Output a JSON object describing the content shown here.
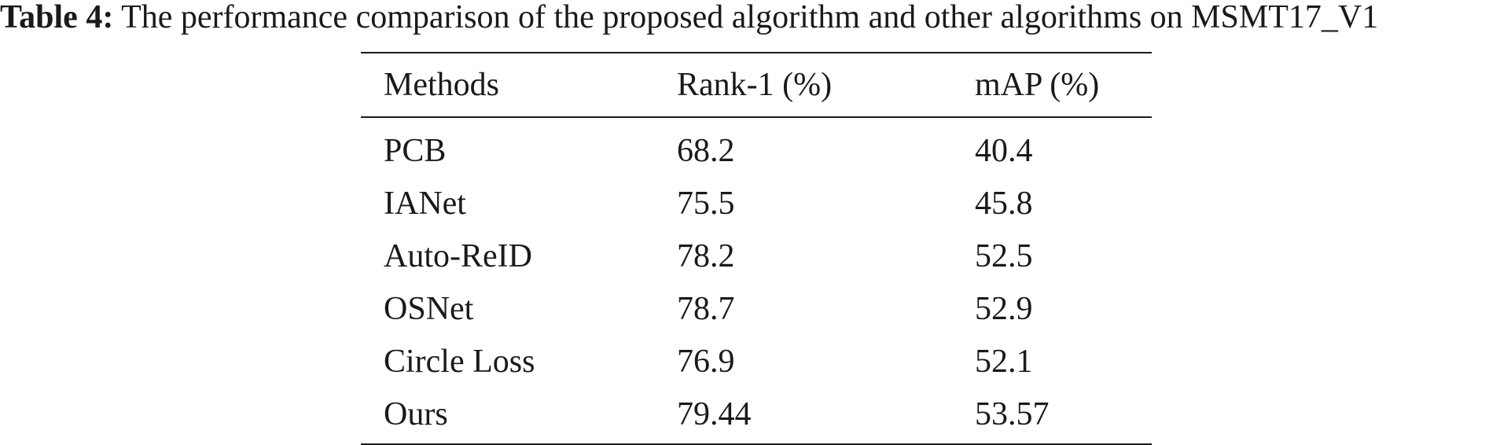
{
  "caption": {
    "label": "Table 4:",
    "text": "The performance comparison of the proposed algorithm and other algorithms on MSMT17_V1"
  },
  "table": {
    "headers": [
      "Methods",
      "Rank-1 (%)",
      "mAP (%)"
    ],
    "rows": [
      [
        "PCB",
        "68.2",
        "40.4"
      ],
      [
        "IANet",
        "75.5",
        "45.8"
      ],
      [
        "Auto-ReID",
        "78.2",
        "52.5"
      ],
      [
        "OSNet",
        "78.7",
        "52.9"
      ],
      [
        "Circle Loss",
        "76.9",
        "52.1"
      ],
      [
        "Ours",
        "79.44",
        "53.57"
      ]
    ]
  }
}
